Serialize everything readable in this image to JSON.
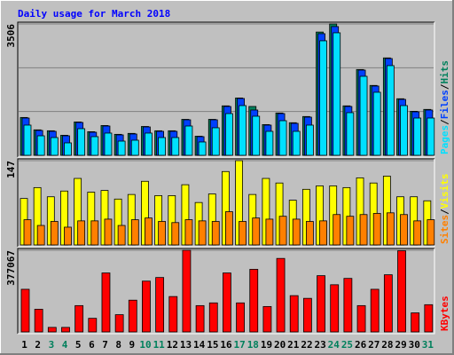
{
  "chart_data": [
    {
      "type": "bar",
      "title": "Daily usage for March 2018",
      "title_color": "#0000ff",
      "ylim": [
        0,
        3506
      ],
      "yticks": [
        3506
      ],
      "legend_separator": "/",
      "series": [
        {
          "name": "Hits",
          "color": "#00805c",
          "values": [
            1010,
            680,
            655,
            535,
            890,
            630,
            795,
            560,
            585,
            770,
            655,
            655,
            960,
            510,
            960,
            1320,
            1530,
            1304,
            820,
            1130,
            870,
            1035,
            3290,
            3506,
            1320,
            2290,
            1865,
            2600,
            1510,
            1175,
            1225
          ]
        },
        {
          "name": "Files",
          "color": "#0040ff",
          "values": [
            995,
            664,
            640,
            521,
            877,
            616,
            782,
            545,
            569,
            758,
            640,
            640,
            948,
            498,
            948,
            1304,
            1517,
            1209,
            806,
            1114,
            853,
            1019,
            3247,
            3437,
            1304,
            2275,
            1849,
            2583,
            1493,
            1161,
            1209
          ]
        },
        {
          "name": "Pages",
          "color": "#00e0ff",
          "values": [
            806,
            521,
            474,
            332,
            711,
            498,
            593,
            379,
            403,
            593,
            474,
            474,
            782,
            356,
            735,
            1114,
            1327,
            1043,
            640,
            924,
            640,
            806,
            3057,
            3270,
            1138,
            2109,
            1683,
            2394,
            1327,
            995,
            995
          ]
        }
      ]
    },
    {
      "type": "bar",
      "ylim": [
        0,
        147
      ],
      "yticks": [
        147
      ],
      "legend_separator": "/",
      "series": [
        {
          "name": "Visits",
          "color": "#ffff00",
          "values": [
            81,
            100,
            84,
            94,
            116,
            92,
            95,
            80,
            88,
            111,
            86,
            86,
            105,
            74,
            89,
            128,
            147,
            88,
            116,
            108,
            78,
            97,
            103,
            103,
            100,
            117,
            108,
            120,
            84,
            84,
            77
          ]
        },
        {
          "name": "Sites",
          "color": "#ff8000",
          "values": [
            44,
            34,
            41,
            31,
            42,
            42,
            45,
            34,
            44,
            47,
            41,
            39,
            44,
            42,
            41,
            58,
            41,
            47,
            45,
            50,
            45,
            41,
            42,
            53,
            50,
            53,
            55,
            56,
            53,
            42,
            44
          ]
        }
      ]
    },
    {
      "type": "bar",
      "ylim": [
        0,
        377067
      ],
      "yticks": [
        377067
      ],
      "categories": [
        "1",
        "2",
        "3",
        "4",
        "5",
        "6",
        "7",
        "8",
        "9",
        "10",
        "11",
        "12",
        "13",
        "14",
        "15",
        "16",
        "17",
        "18",
        "19",
        "20",
        "21",
        "22",
        "23",
        "24",
        "25",
        "26",
        "27",
        "28",
        "29",
        "30",
        "31"
      ],
      "category_colors": [
        "#000000",
        "#000000",
        "#00805c",
        "#00805c",
        "#000000",
        "#000000",
        "#000000",
        "#000000",
        "#000000",
        "#00805c",
        "#00805c",
        "#000000",
        "#000000",
        "#000000",
        "#000000",
        "#000000",
        "#00805c",
        "#00805c",
        "#000000",
        "#000000",
        "#000000",
        "#000000",
        "#000000",
        "#00805c",
        "#00805c",
        "#000000",
        "#000000",
        "#000000",
        "#000000",
        "#000000",
        "#00805c"
      ],
      "series": [
        {
          "name": "KBytes",
          "color": "#ff0000",
          "values": [
            196930,
            104750,
            20950,
            20950,
            121510,
            62850,
            272350,
            79610,
            146650,
            234640,
            251400,
            163410,
            377067,
            121510,
            134080,
            272350,
            134080,
            289110,
            117320,
            339390,
            167600,
            155030,
            259780,
            217880,
            247210,
            121510,
            196930,
            263970,
            375000,
            87990,
            125700
          ]
        }
      ]
    }
  ]
}
